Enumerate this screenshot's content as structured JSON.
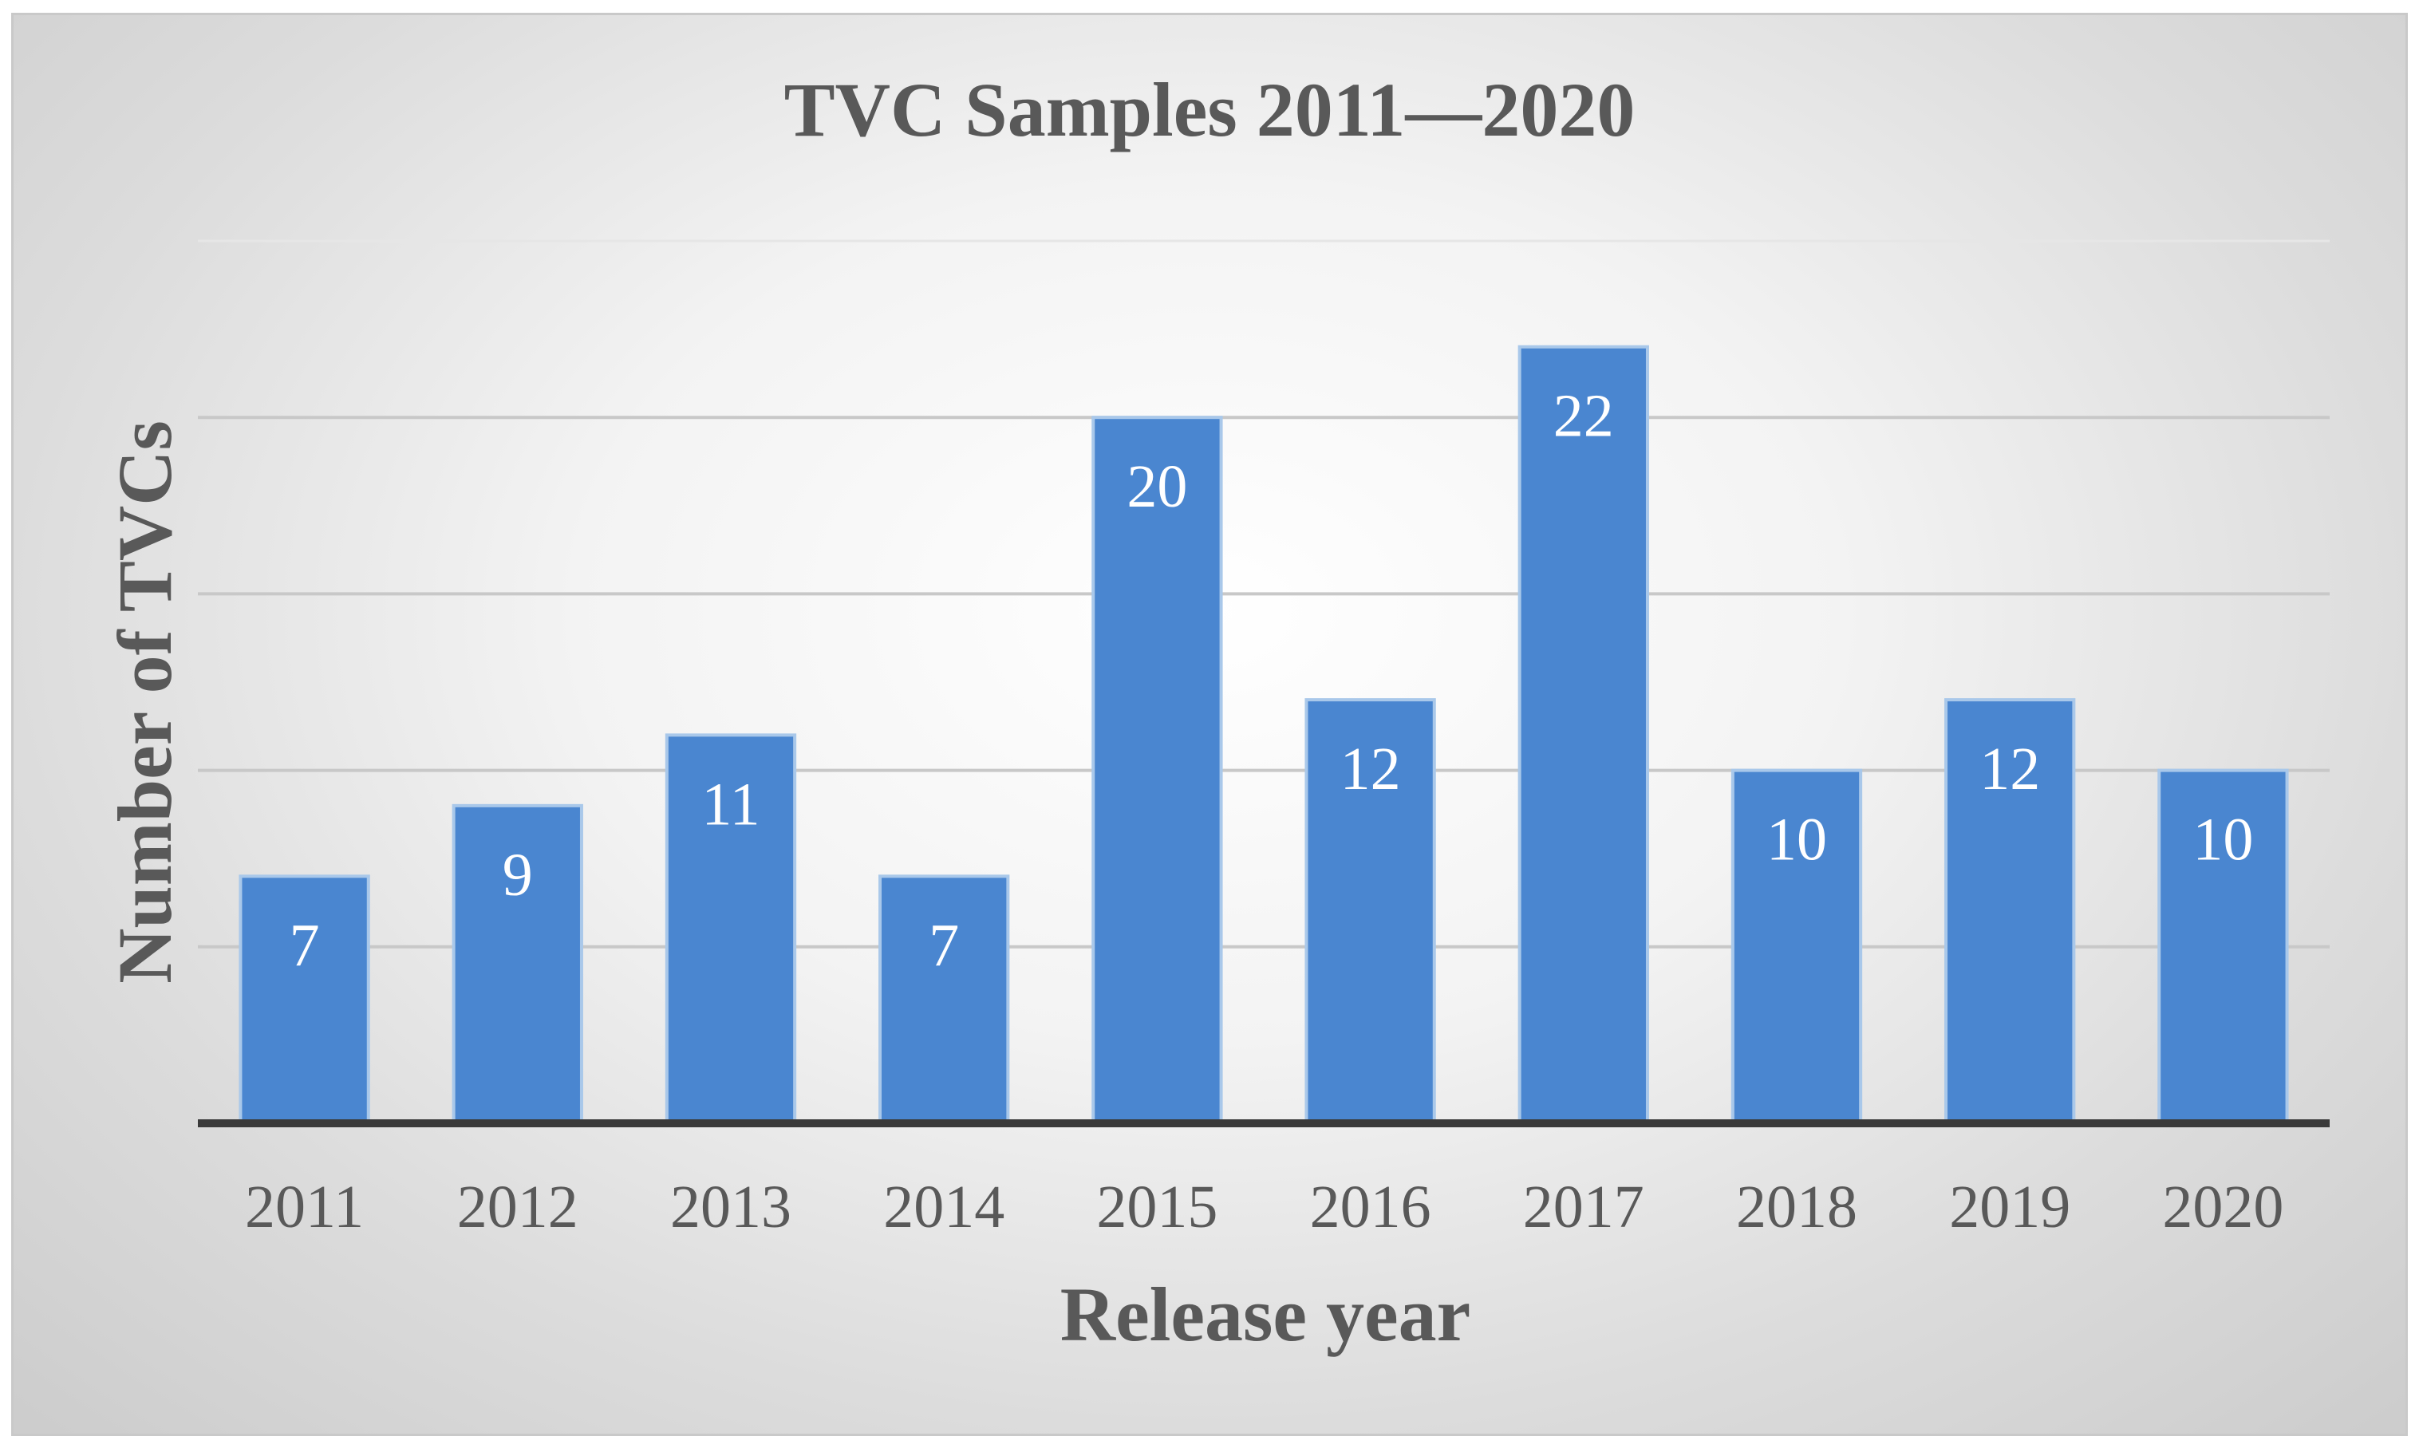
{
  "chart_data": {
    "type": "bar",
    "title": "TVC Samples 2011—2020",
    "xlabel": "Release year",
    "ylabel": "Number of TVCs",
    "categories": [
      "2011",
      "2012",
      "2013",
      "2014",
      "2015",
      "2016",
      "2017",
      "2018",
      "2019",
      "2020"
    ],
    "values": [
      7,
      9,
      11,
      7,
      20,
      12,
      22,
      10,
      12,
      10
    ],
    "data_labels": [
      "7",
      "9",
      "11",
      "7",
      "20",
      "12",
      "22",
      "10",
      "12",
      "10"
    ],
    "ylim": [
      0,
      25
    ],
    "y_gridlines": [
      5,
      10,
      15,
      20,
      25
    ],
    "grid": true,
    "y_tick_labels_shown": false,
    "legend": "none",
    "bar_color": "#4a86d0",
    "bar_edge_color": "#a9c8ea",
    "background": "radial-gradient white to light gray"
  }
}
